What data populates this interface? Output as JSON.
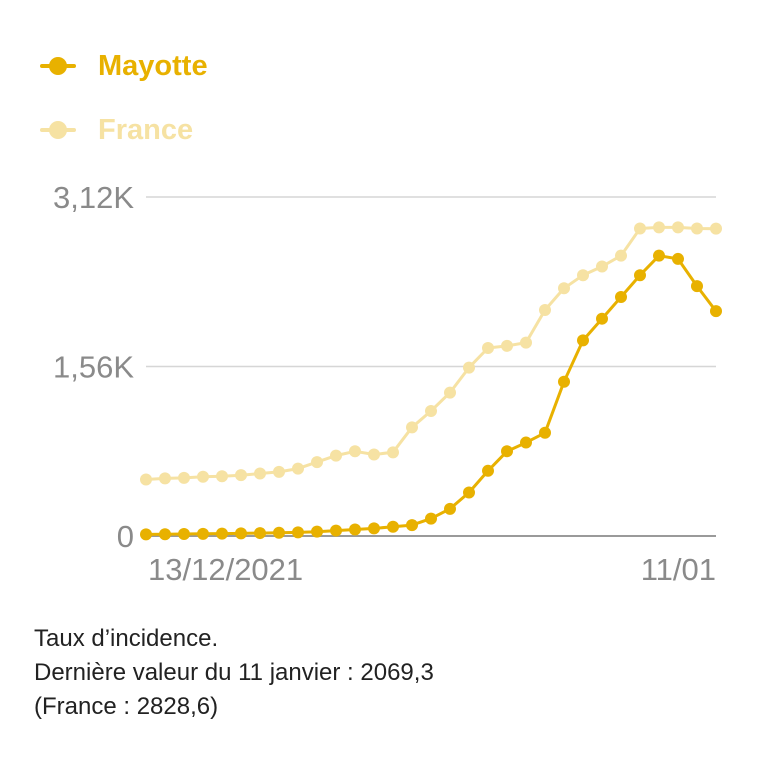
{
  "legend": [
    {
      "name": "Mayotte",
      "color": "#e8b100"
    },
    {
      "name": "France",
      "color": "#f6e2a3"
    }
  ],
  "chart_data": {
    "type": "line",
    "x_ticks": [
      "13/12/2021",
      "11/01"
    ],
    "y_ticks": [
      "0",
      "1,56K",
      "3,12K"
    ],
    "ylim": [
      0,
      3120
    ],
    "grid": true,
    "legend_position": "top-left",
    "series": [
      {
        "name": "Mayotte",
        "color": "#e8b100",
        "values": [
          15,
          16,
          18,
          20,
          22,
          24,
          27,
          30,
          33,
          40,
          50,
          60,
          70,
          85,
          100,
          160,
          250,
          400,
          600,
          780,
          860,
          950,
          1420,
          1800,
          2000,
          2200,
          2400,
          2580,
          2550,
          2300,
          2069.3
        ]
      },
      {
        "name": "France",
        "color": "#f6e2a3",
        "values": [
          520,
          530,
          535,
          545,
          550,
          560,
          575,
          590,
          620,
          680,
          740,
          780,
          750,
          770,
          1000,
          1150,
          1320,
          1550,
          1730,
          1750,
          1780,
          2080,
          2280,
          2400,
          2480,
          2580,
          2830,
          2840,
          2840,
          2830,
          2828.6
        ]
      }
    ]
  },
  "caption": {
    "line1": "Taux d’incidence.",
    "line2": "Dernière valeur du 11 janvier : 2069,3",
    "line3": "(France : 2828,6)"
  }
}
